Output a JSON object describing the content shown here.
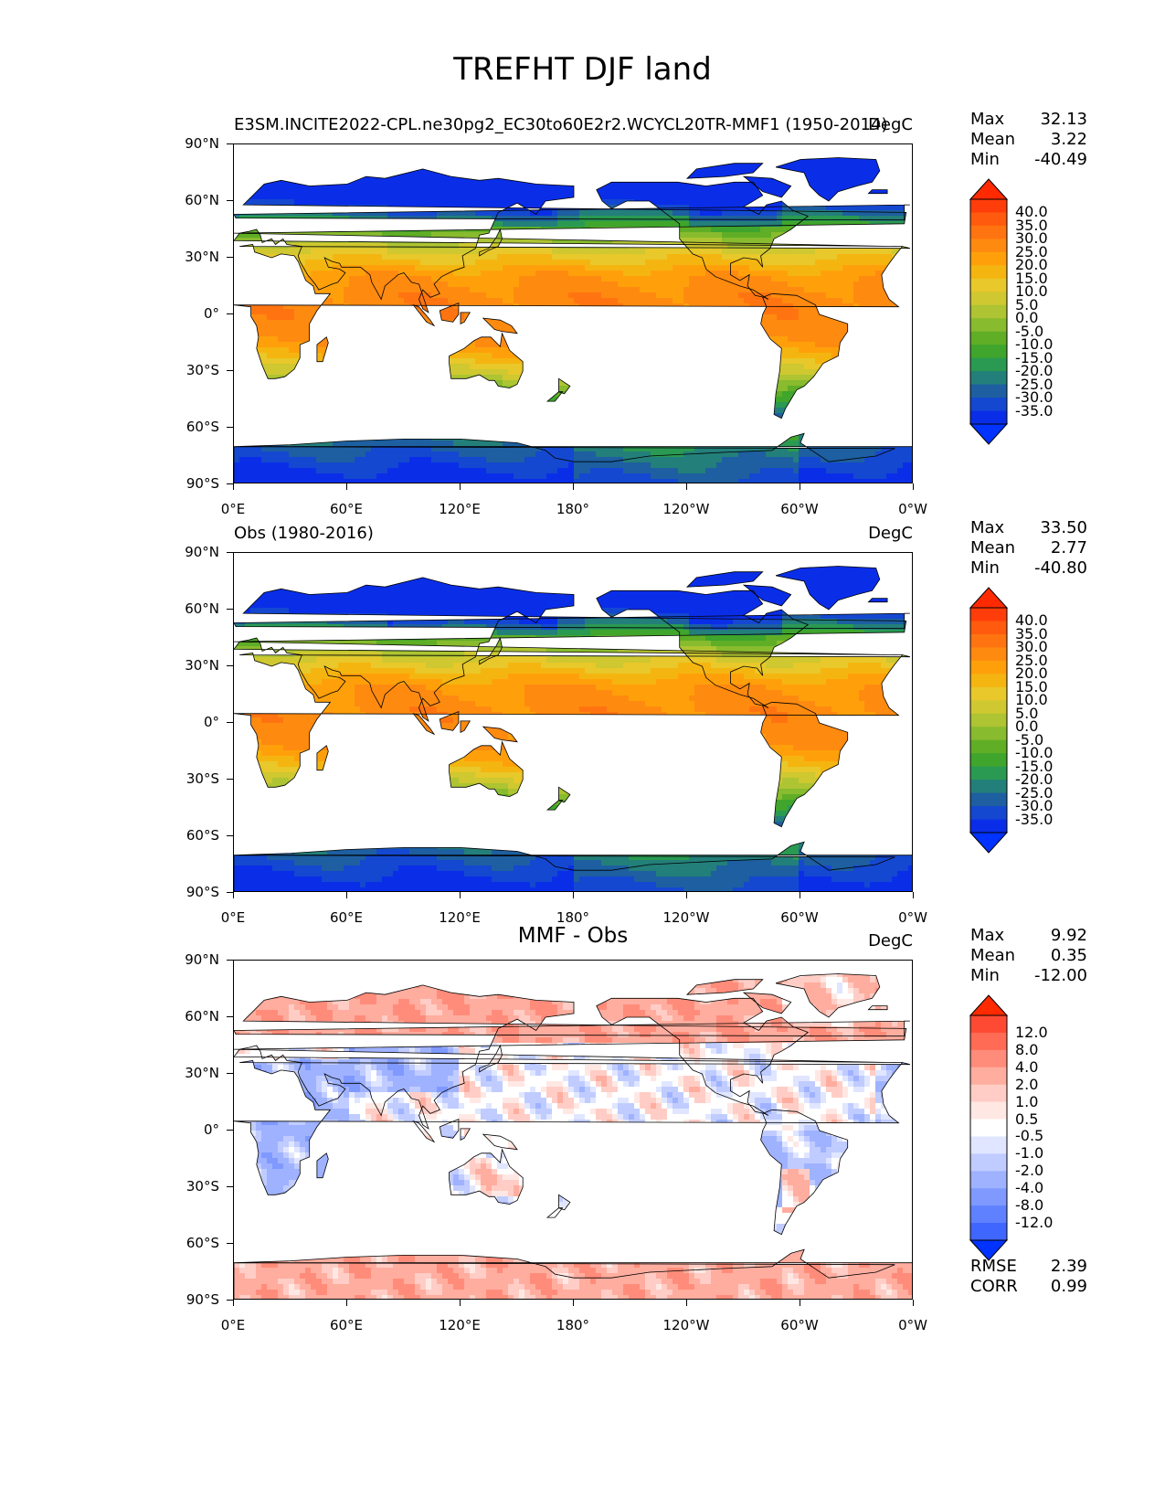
{
  "figure": {
    "title": "TREFHT DJF land"
  },
  "panels": [
    {
      "left_title": "E3SM.INCITE2022-CPL.ne30pg2_EC30to60E2r2.WCYCL20TR-MMF1 (1950-2014)",
      "center_title": "",
      "right_title": "DegC",
      "stats": {
        "max_label": "Max",
        "max": "32.13",
        "mean_label": "Mean",
        "mean": "3.22",
        "min_label": "Min",
        "min": "-40.49"
      },
      "colorbar": {
        "levels": [
          "40.0",
          "35.0",
          "30.0",
          "25.0",
          "20.0",
          "15.0",
          "10.0",
          "5.0",
          "0.0",
          "-5.0",
          "-10.0",
          "-15.0",
          "-20.0",
          "-25.0",
          "-30.0",
          "-35.0"
        ],
        "colors": [
          "#ff3d0a",
          "#ff5a0d",
          "#ff7410",
          "#ff8a10",
          "#ffa00a",
          "#f5b510",
          "#e8c82a",
          "#cfc830",
          "#aec432",
          "#88bb2e",
          "#5fae26",
          "#3fa52c",
          "#2a9a52",
          "#237f7a",
          "#1d5fa0",
          "#1448d0",
          "#0a2ee8"
        ],
        "extend_top": "#ff2a00",
        "extend_bottom": "#0033ff"
      },
      "map_type": "absolute"
    },
    {
      "left_title": "Obs (1980-2016)",
      "center_title": "",
      "right_title": "DegC",
      "stats": {
        "max_label": "Max",
        "max": "33.50",
        "mean_label": "Mean",
        "mean": "2.77",
        "min_label": "Min",
        "min": "-40.80"
      },
      "colorbar": {
        "levels": [
          "40.0",
          "35.0",
          "30.0",
          "25.0",
          "20.0",
          "15.0",
          "10.0",
          "5.0",
          "0.0",
          "-5.0",
          "-10.0",
          "-15.0",
          "-20.0",
          "-25.0",
          "-30.0",
          "-35.0"
        ],
        "colors": [
          "#ff3d0a",
          "#ff5a0d",
          "#ff7410",
          "#ff8a10",
          "#ffa00a",
          "#f5b510",
          "#e8c82a",
          "#cfc830",
          "#aec432",
          "#88bb2e",
          "#5fae26",
          "#3fa52c",
          "#2a9a52",
          "#237f7a",
          "#1d5fa0",
          "#1448d0",
          "#0a2ee8"
        ],
        "extend_top": "#ff2a00",
        "extend_bottom": "#0033ff"
      },
      "map_type": "absolute"
    },
    {
      "left_title": "",
      "center_title": "MMF - Obs",
      "right_title": "DegC",
      "stats": {
        "max_label": "Max",
        "max": "9.92",
        "mean_label": "Mean",
        "mean": "0.35",
        "min_label": "Min",
        "min": "-12.00"
      },
      "colorbar": {
        "levels": [
          "12.0",
          "8.0",
          "4.0",
          "2.0",
          "1.0",
          "0.5",
          "-0.5",
          "-1.0",
          "-2.0",
          "-4.0",
          "-8.0",
          "-12.0"
        ],
        "colors": [
          "#ff4a33",
          "#ff6b55",
          "#ff8c7a",
          "#ffad9f",
          "#ffcdc5",
          "#ffe8e4",
          "#ffffff",
          "#e0e6ff",
          "#c0ccff",
          "#9fb2ff",
          "#7f99ff",
          "#5f80ff",
          "#3f66ff"
        ],
        "extend_top": "#ff2a00",
        "extend_bottom": "#0033ff"
      },
      "metrics": {
        "rmse_label": "RMSE",
        "rmse": "2.39",
        "corr_label": "CORR",
        "corr": "0.99"
      },
      "map_type": "difference"
    }
  ],
  "axes": {
    "lat_ticks": [
      "90°N",
      "60°N",
      "30°N",
      "0°",
      "30°S",
      "60°S",
      "90°S"
    ],
    "lon_ticks": [
      "0°E",
      "60°E",
      "120°E",
      "180°",
      "120°W",
      "60°W",
      "0°W"
    ]
  }
}
